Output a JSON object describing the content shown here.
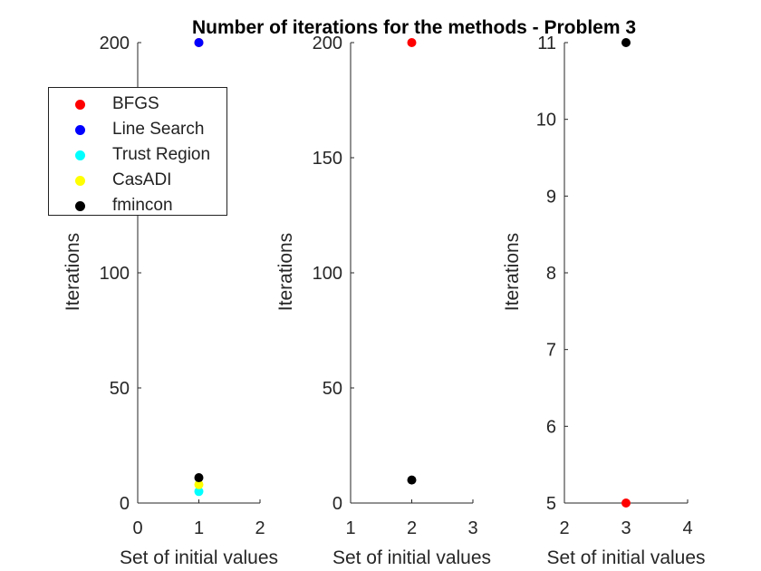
{
  "figure": {
    "title": "Number of iterations for the methods - Problem 3"
  },
  "legend": [
    {
      "label": "BFGS",
      "color": "#ff0000"
    },
    {
      "label": "Line Search",
      "color": "#0000ff"
    },
    {
      "label": "Trust Region",
      "color": "#00ffff"
    },
    {
      "label": "CasADI",
      "color": "#ffff00"
    },
    {
      "label": "fmincon",
      "color": "#000000"
    }
  ],
  "chart_data": [
    {
      "type": "scatter",
      "xlabel": "Set of initial values",
      "ylabel": "Iterations",
      "xlim": [
        0,
        2
      ],
      "ylim": [
        0,
        200
      ],
      "xticks": [
        0,
        1,
        2
      ],
      "yticks": [
        0,
        50,
        100,
        200
      ],
      "series": [
        {
          "name": "BFGS",
          "color": "#ff0000",
          "points": [
            [
              1,
              200
            ]
          ]
        },
        {
          "name": "Line Search",
          "color": "#0000ff",
          "points": [
            [
              1,
              200
            ]
          ]
        },
        {
          "name": "Trust Region",
          "color": "#00ffff",
          "points": [
            [
              1,
              5
            ]
          ]
        },
        {
          "name": "CasADI",
          "color": "#ffff00",
          "points": [
            [
              1,
              8
            ]
          ]
        },
        {
          "name": "fmincon",
          "color": "#000000",
          "points": [
            [
              1,
              11
            ]
          ]
        }
      ]
    },
    {
      "type": "scatter",
      "xlabel": "Set of initial values",
      "ylabel": "Iterations",
      "xlim": [
        1,
        3
      ],
      "ylim": [
        0,
        200
      ],
      "xticks": [
        1,
        2,
        3
      ],
      "yticks": [
        0,
        50,
        100,
        150,
        200
      ],
      "series": [
        {
          "name": "BFGS",
          "color": "#ff0000",
          "points": [
            [
              2,
              200
            ]
          ]
        },
        {
          "name": "fmincon",
          "color": "#000000",
          "points": [
            [
              2,
              10
            ]
          ]
        }
      ]
    },
    {
      "type": "scatter",
      "xlabel": "Set of initial values",
      "ylabel": "Iterations",
      "xlim": [
        2,
        4
      ],
      "ylim": [
        5,
        11
      ],
      "xticks": [
        2,
        3,
        4
      ],
      "yticks": [
        5,
        6,
        7,
        8,
        9,
        10,
        11
      ],
      "series": [
        {
          "name": "BFGS",
          "color": "#ff0000",
          "points": [
            [
              3,
              5
            ]
          ]
        },
        {
          "name": "fmincon",
          "color": "#000000",
          "points": [
            [
              3,
              11
            ]
          ]
        }
      ]
    }
  ]
}
